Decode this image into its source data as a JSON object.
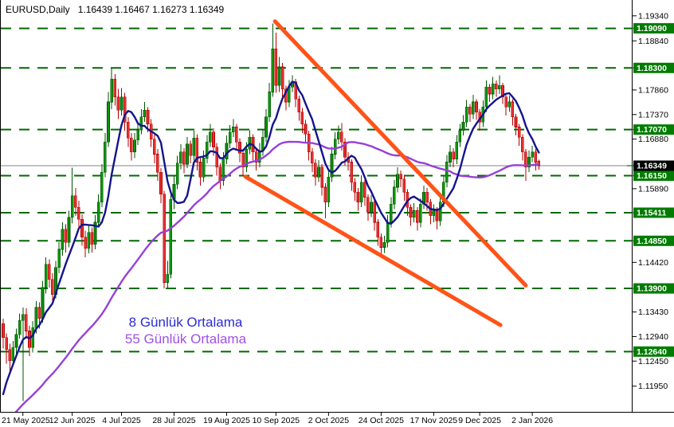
{
  "header": {
    "symbol": "EURUSD,Daily",
    "ohlc": "1.16439 1.16467 1.16273 1.16349"
  },
  "annotations": {
    "ma8": "8 Günlük Ortalama",
    "ma55": "55 Günlük Ortalama"
  },
  "colors": {
    "bull_fill": "#0E940E",
    "bull_border": "#005500",
    "bear_fill": "#E53030",
    "bear_border": "#B40000",
    "ma8": "#14148C",
    "ma55": "#9640D8",
    "trendline": "#FF5318",
    "level_line": "#006A00",
    "level_box": "#007C00",
    "current_line": "#858585",
    "current_box": "#000000",
    "axis_text": "#000000",
    "annotation_ma8": "#2B2BD5",
    "annotation_ma55": "#A04FE8"
  },
  "chart_data": {
    "type": "candlestick",
    "title": "EURUSD,Daily",
    "ylim": [
      1.1158,
      1.1956
    ],
    "current_price": 1.16349,
    "levels": [
      1.1909,
      1.183,
      1.1707,
      1.1615,
      1.15411,
      1.1485,
      1.139,
      1.1264
    ],
    "y_ticks": [
      1.1934,
      1.1884,
      1.1786,
      1.1737,
      1.1688,
      1.1589,
      1.1442,
      1.1343,
      1.1294,
      1.1245,
      1.1195
    ],
    "x_ticks": [
      {
        "label": "21 May 2025",
        "i": 6
      },
      {
        "label": "12 Jun 2025",
        "i": 21
      },
      {
        "label": "4 Jul 2025",
        "i": 36
      },
      {
        "label": "28 Jul 2025",
        "i": 52
      },
      {
        "label": "19 Aug 2025",
        "i": 68
      },
      {
        "label": "10 Sep 2025",
        "i": 83
      },
      {
        "label": "2 Oct 2025",
        "i": 99
      },
      {
        "label": "24 Oct 2025",
        "i": 115
      },
      {
        "label": "17 Nov 2025",
        "i": 131
      },
      {
        "label": "9 Dec 2025",
        "i": 145
      },
      {
        "label": "2 Jan 2026",
        "i": 161
      }
    ],
    "moving_averages": [
      {
        "name": "ma8",
        "period": 8,
        "seed": [
          1.108,
          1.11,
          1.113,
          1.116,
          1.119,
          1.122,
          1.126
        ]
      },
      {
        "name": "ma55",
        "period": 55,
        "seed_ramp": {
          "from": 1.09,
          "to": 1.133,
          "count": 54
        }
      }
    ],
    "trendlines": [
      {
        "from": {
          "i": 82.7,
          "price": 1.1923
        },
        "to": {
          "i": 159.0,
          "price": 1.1396
        }
      },
      {
        "from": {
          "i": 73.7,
          "price": 1.1613
        },
        "to": {
          "i": 151.3,
          "price": 1.1317
        }
      }
    ],
    "candles": [
      [
        1.132,
        1.133,
        1.127,
        1.1292
      ],
      [
        1.1292,
        1.13,
        1.124,
        1.1268
      ],
      [
        1.1268,
        1.128,
        1.1224,
        1.1246
      ],
      [
        1.1246,
        1.1285,
        1.1238,
        1.1272
      ],
      [
        1.1272,
        1.131,
        1.126,
        1.1298
      ],
      [
        1.1298,
        1.134,
        1.129,
        1.1326
      ],
      [
        1.1326,
        1.1352,
        1.1165,
        1.1338
      ],
      [
        1.1338,
        1.135,
        1.129,
        1.1305
      ],
      [
        1.1305,
        1.1315,
        1.1255,
        1.1272
      ],
      [
        1.1272,
        1.1325,
        1.1262,
        1.1312
      ],
      [
        1.1312,
        1.1365,
        1.13,
        1.1352
      ],
      [
        1.1352,
        1.1362,
        1.131,
        1.133
      ],
      [
        1.133,
        1.1405,
        1.1322,
        1.1392
      ],
      [
        1.1392,
        1.1452,
        1.138,
        1.1438
      ],
      [
        1.1438,
        1.1448,
        1.1392,
        1.1408
      ],
      [
        1.1408,
        1.142,
        1.136,
        1.1378
      ],
      [
        1.1378,
        1.1445,
        1.137,
        1.1432
      ],
      [
        1.1432,
        1.1482,
        1.142,
        1.1468
      ],
      [
        1.1468,
        1.1522,
        1.1455,
        1.1508
      ],
      [
        1.1508,
        1.1518,
        1.1462,
        1.1482
      ],
      [
        1.1482,
        1.1545,
        1.1472,
        1.1532
      ],
      [
        1.1532,
        1.1631,
        1.152,
        1.1575
      ],
      [
        1.1575,
        1.159,
        1.1535,
        1.1552
      ],
      [
        1.1552,
        1.1565,
        1.151,
        1.1528
      ],
      [
        1.1528,
        1.1538,
        1.1475,
        1.1492
      ],
      [
        1.1492,
        1.1505,
        1.1452,
        1.147
      ],
      [
        1.147,
        1.1516,
        1.146,
        1.1502
      ],
      [
        1.1502,
        1.1512,
        1.1462,
        1.1478
      ],
      [
        1.1478,
        1.1536,
        1.1468,
        1.1522
      ],
      [
        1.1522,
        1.1578,
        1.1512,
        1.1562
      ],
      [
        1.1562,
        1.1638,
        1.1552,
        1.1622
      ],
      [
        1.1622,
        1.17,
        1.1612,
        1.1682
      ],
      [
        1.1682,
        1.1782,
        1.1672,
        1.1762
      ],
      [
        1.1762,
        1.1829,
        1.1748,
        1.1808
      ],
      [
        1.1808,
        1.1818,
        1.1755,
        1.1772
      ],
      [
        1.1772,
        1.1788,
        1.1728,
        1.1746
      ],
      [
        1.1746,
        1.179,
        1.1735,
        1.1772
      ],
      [
        1.1772,
        1.178,
        1.1705,
        1.1722
      ],
      [
        1.1722,
        1.1732,
        1.1672,
        1.169
      ],
      [
        1.169,
        1.17,
        1.1645,
        1.1662
      ],
      [
        1.1662,
        1.17,
        1.165,
        1.1686
      ],
      [
        1.1686,
        1.1722,
        1.1676,
        1.1706
      ],
      [
        1.1706,
        1.1748,
        1.1698,
        1.1732
      ],
      [
        1.1732,
        1.1762,
        1.1722,
        1.1746
      ],
      [
        1.1746,
        1.1752,
        1.1702,
        1.1718
      ],
      [
        1.1718,
        1.1728,
        1.1672,
        1.1688
      ],
      [
        1.1688,
        1.1698,
        1.164,
        1.1658
      ],
      [
        1.1658,
        1.1668,
        1.1605,
        1.1622
      ],
      [
        1.1622,
        1.163,
        1.156,
        1.1578
      ],
      [
        1.1578,
        1.1585,
        1.139,
        1.1402
      ],
      [
        1.1402,
        1.1445,
        1.1392,
        1.1418
      ],
      [
        1.1418,
        1.1582,
        1.141,
        1.1568
      ],
      [
        1.1568,
        1.1615,
        1.1548,
        1.1598
      ],
      [
        1.1598,
        1.1655,
        1.1588,
        1.164
      ],
      [
        1.164,
        1.1678,
        1.1628,
        1.1662
      ],
      [
        1.1662,
        1.167,
        1.162,
        1.1638
      ],
      [
        1.1638,
        1.1692,
        1.163,
        1.1678
      ],
      [
        1.1678,
        1.1685,
        1.164,
        1.1655
      ],
      [
        1.1655,
        1.1705,
        1.1645,
        1.169
      ],
      [
        1.169,
        1.1698,
        1.1625,
        1.1642
      ],
      [
        1.1642,
        1.165,
        1.1595,
        1.1612
      ],
      [
        1.1612,
        1.1665,
        1.1602,
        1.165
      ],
      [
        1.165,
        1.1696,
        1.164,
        1.1682
      ],
      [
        1.1682,
        1.1718,
        1.1672,
        1.1702
      ],
      [
        1.1702,
        1.171,
        1.1655,
        1.1672
      ],
      [
        1.1672,
        1.168,
        1.1615,
        1.1632
      ],
      [
        1.1632,
        1.164,
        1.1588,
        1.1605
      ],
      [
        1.1605,
        1.1662,
        1.1595,
        1.1648
      ],
      [
        1.1648,
        1.1695,
        1.1638,
        1.168
      ],
      [
        1.168,
        1.1716,
        1.167,
        1.1702
      ],
      [
        1.1702,
        1.1728,
        1.1692,
        1.1712
      ],
      [
        1.1712,
        1.1718,
        1.1665,
        1.1682
      ],
      [
        1.1682,
        1.169,
        1.1642,
        1.166
      ],
      [
        1.166,
        1.1668,
        1.1615,
        1.1632
      ],
      [
        1.1632,
        1.1682,
        1.1622,
        1.1668
      ],
      [
        1.1668,
        1.1706,
        1.1658,
        1.1692
      ],
      [
        1.1692,
        1.1698,
        1.1645,
        1.1662
      ],
      [
        1.1662,
        1.167,
        1.1625,
        1.1642
      ],
      [
        1.1642,
        1.168,
        1.1632,
        1.1665
      ],
      [
        1.1665,
        1.1708,
        1.1655,
        1.1692
      ],
      [
        1.1692,
        1.1748,
        1.1682,
        1.1732
      ],
      [
        1.1732,
        1.18,
        1.1722,
        1.1782
      ],
      [
        1.1782,
        1.1919,
        1.1772,
        1.1868
      ],
      [
        1.1868,
        1.19,
        1.178,
        1.1795
      ],
      [
        1.1795,
        1.1852,
        1.1782,
        1.1832
      ],
      [
        1.1832,
        1.184,
        1.177,
        1.1788
      ],
      [
        1.1788,
        1.1795,
        1.1745,
        1.1762
      ],
      [
        1.1762,
        1.1806,
        1.1752,
        1.1792
      ],
      [
        1.1792,
        1.1815,
        1.1782,
        1.1802
      ],
      [
        1.1802,
        1.1808,
        1.1752,
        1.1768
      ],
      [
        1.1768,
        1.1775,
        1.1725,
        1.1742
      ],
      [
        1.1742,
        1.175,
        1.17,
        1.1718
      ],
      [
        1.1718,
        1.1726,
        1.168,
        1.1698
      ],
      [
        1.1698,
        1.1705,
        1.1645,
        1.1662
      ],
      [
        1.1662,
        1.167,
        1.1622,
        1.164
      ],
      [
        1.164,
        1.1648,
        1.1595,
        1.1612
      ],
      [
        1.1612,
        1.1646,
        1.1602,
        1.1632
      ],
      [
        1.1632,
        1.1638,
        1.1575,
        1.1592
      ],
      [
        1.1592,
        1.16,
        1.153,
        1.1562
      ],
      [
        1.1562,
        1.1626,
        1.1552,
        1.1612
      ],
      [
        1.1612,
        1.1672,
        1.1602,
        1.1658
      ],
      [
        1.1658,
        1.1702,
        1.1648,
        1.1688
      ],
      [
        1.1688,
        1.1715,
        1.1678,
        1.1702
      ],
      [
        1.1702,
        1.172,
        1.1665,
        1.1682
      ],
      [
        1.1682,
        1.169,
        1.1635,
        1.1652
      ],
      [
        1.1652,
        1.1662,
        1.1625,
        1.1642
      ],
      [
        1.1642,
        1.1648,
        1.1585,
        1.1602
      ],
      [
        1.1602,
        1.161,
        1.1565,
        1.1582
      ],
      [
        1.1582,
        1.159,
        1.1545,
        1.1562
      ],
      [
        1.1562,
        1.1616,
        1.1552,
        1.1602
      ],
      [
        1.1602,
        1.1608,
        1.1555,
        1.1572
      ],
      [
        1.1572,
        1.1578,
        1.1525,
        1.1542
      ],
      [
        1.1542,
        1.1576,
        1.1532,
        1.1562
      ],
      [
        1.1562,
        1.1568,
        1.1505,
        1.1522
      ],
      [
        1.1522,
        1.1528,
        1.1475,
        1.1492
      ],
      [
        1.1492,
        1.15,
        1.1458,
        1.1472
      ],
      [
        1.1472,
        1.1495,
        1.1461,
        1.1482
      ],
      [
        1.1482,
        1.1536,
        1.1472,
        1.1522
      ],
      [
        1.1522,
        1.1572,
        1.1512,
        1.1558
      ],
      [
        1.1558,
        1.1606,
        1.1548,
        1.1592
      ],
      [
        1.1592,
        1.1632,
        1.1582,
        1.1618
      ],
      [
        1.1618,
        1.1625,
        1.1592,
        1.1608
      ],
      [
        1.1608,
        1.1615,
        1.1565,
        1.1582
      ],
      [
        1.1582,
        1.1588,
        1.1535,
        1.1552
      ],
      [
        1.1552,
        1.1558,
        1.1515,
        1.1532
      ],
      [
        1.1532,
        1.156,
        1.1522,
        1.1545
      ],
      [
        1.1545,
        1.1552,
        1.1505,
        1.1522
      ],
      [
        1.1522,
        1.157,
        1.1512,
        1.1558
      ],
      [
        1.1558,
        1.1595,
        1.1548,
        1.1582
      ],
      [
        1.1582,
        1.159,
        1.1545,
        1.1562
      ],
      [
        1.1562,
        1.1568,
        1.1518,
        1.1535
      ],
      [
        1.1535,
        1.1558,
        1.1522,
        1.1545
      ],
      [
        1.1545,
        1.1552,
        1.1508,
        1.1525
      ],
      [
        1.1525,
        1.1575,
        1.1515,
        1.1562
      ],
      [
        1.1562,
        1.1615,
        1.1552,
        1.1602
      ],
      [
        1.1602,
        1.1656,
        1.1592,
        1.1642
      ],
      [
        1.1642,
        1.1676,
        1.1632,
        1.1662
      ],
      [
        1.1662,
        1.167,
        1.1632,
        1.1648
      ],
      [
        1.1648,
        1.1696,
        1.1638,
        1.1682
      ],
      [
        1.1682,
        1.1718,
        1.1672,
        1.1705
      ],
      [
        1.1705,
        1.1736,
        1.1695,
        1.1722
      ],
      [
        1.1722,
        1.1766,
        1.1712,
        1.1752
      ],
      [
        1.1752,
        1.1758,
        1.1722,
        1.1738
      ],
      [
        1.1738,
        1.1776,
        1.1728,
        1.1762
      ],
      [
        1.1762,
        1.1768,
        1.1726,
        1.1742
      ],
      [
        1.1742,
        1.1748,
        1.1705,
        1.1722
      ],
      [
        1.1722,
        1.1765,
        1.1712,
        1.1752
      ],
      [
        1.1752,
        1.1805,
        1.1742,
        1.1792
      ],
      [
        1.1792,
        1.1798,
        1.1762,
        1.1778
      ],
      [
        1.1778,
        1.1812,
        1.1768,
        1.1798
      ],
      [
        1.1798,
        1.1805,
        1.1772,
        1.1788
      ],
      [
        1.1788,
        1.1815,
        1.1778,
        1.1795
      ],
      [
        1.1795,
        1.18,
        1.1758,
        1.1772
      ],
      [
        1.1772,
        1.1778,
        1.1735,
        1.1752
      ],
      [
        1.1752,
        1.1775,
        1.1742,
        1.1762
      ],
      [
        1.1762,
        1.1768,
        1.1715,
        1.1732
      ],
      [
        1.1732,
        1.1738,
        1.1695,
        1.1712
      ],
      [
        1.1712,
        1.1718,
        1.1675,
        1.1692
      ],
      [
        1.1692,
        1.1698,
        1.1645,
        1.1662
      ],
      [
        1.1662,
        1.1668,
        1.1605,
        1.1632
      ],
      [
        1.1632,
        1.1665,
        1.1622,
        1.1652
      ],
      [
        1.1652,
        1.1675,
        1.1642,
        1.1662
      ],
      [
        1.1662,
        1.1668,
        1.1625,
        1.1642
      ],
      [
        1.16439,
        1.16467,
        1.16273,
        1.16349
      ]
    ]
  }
}
